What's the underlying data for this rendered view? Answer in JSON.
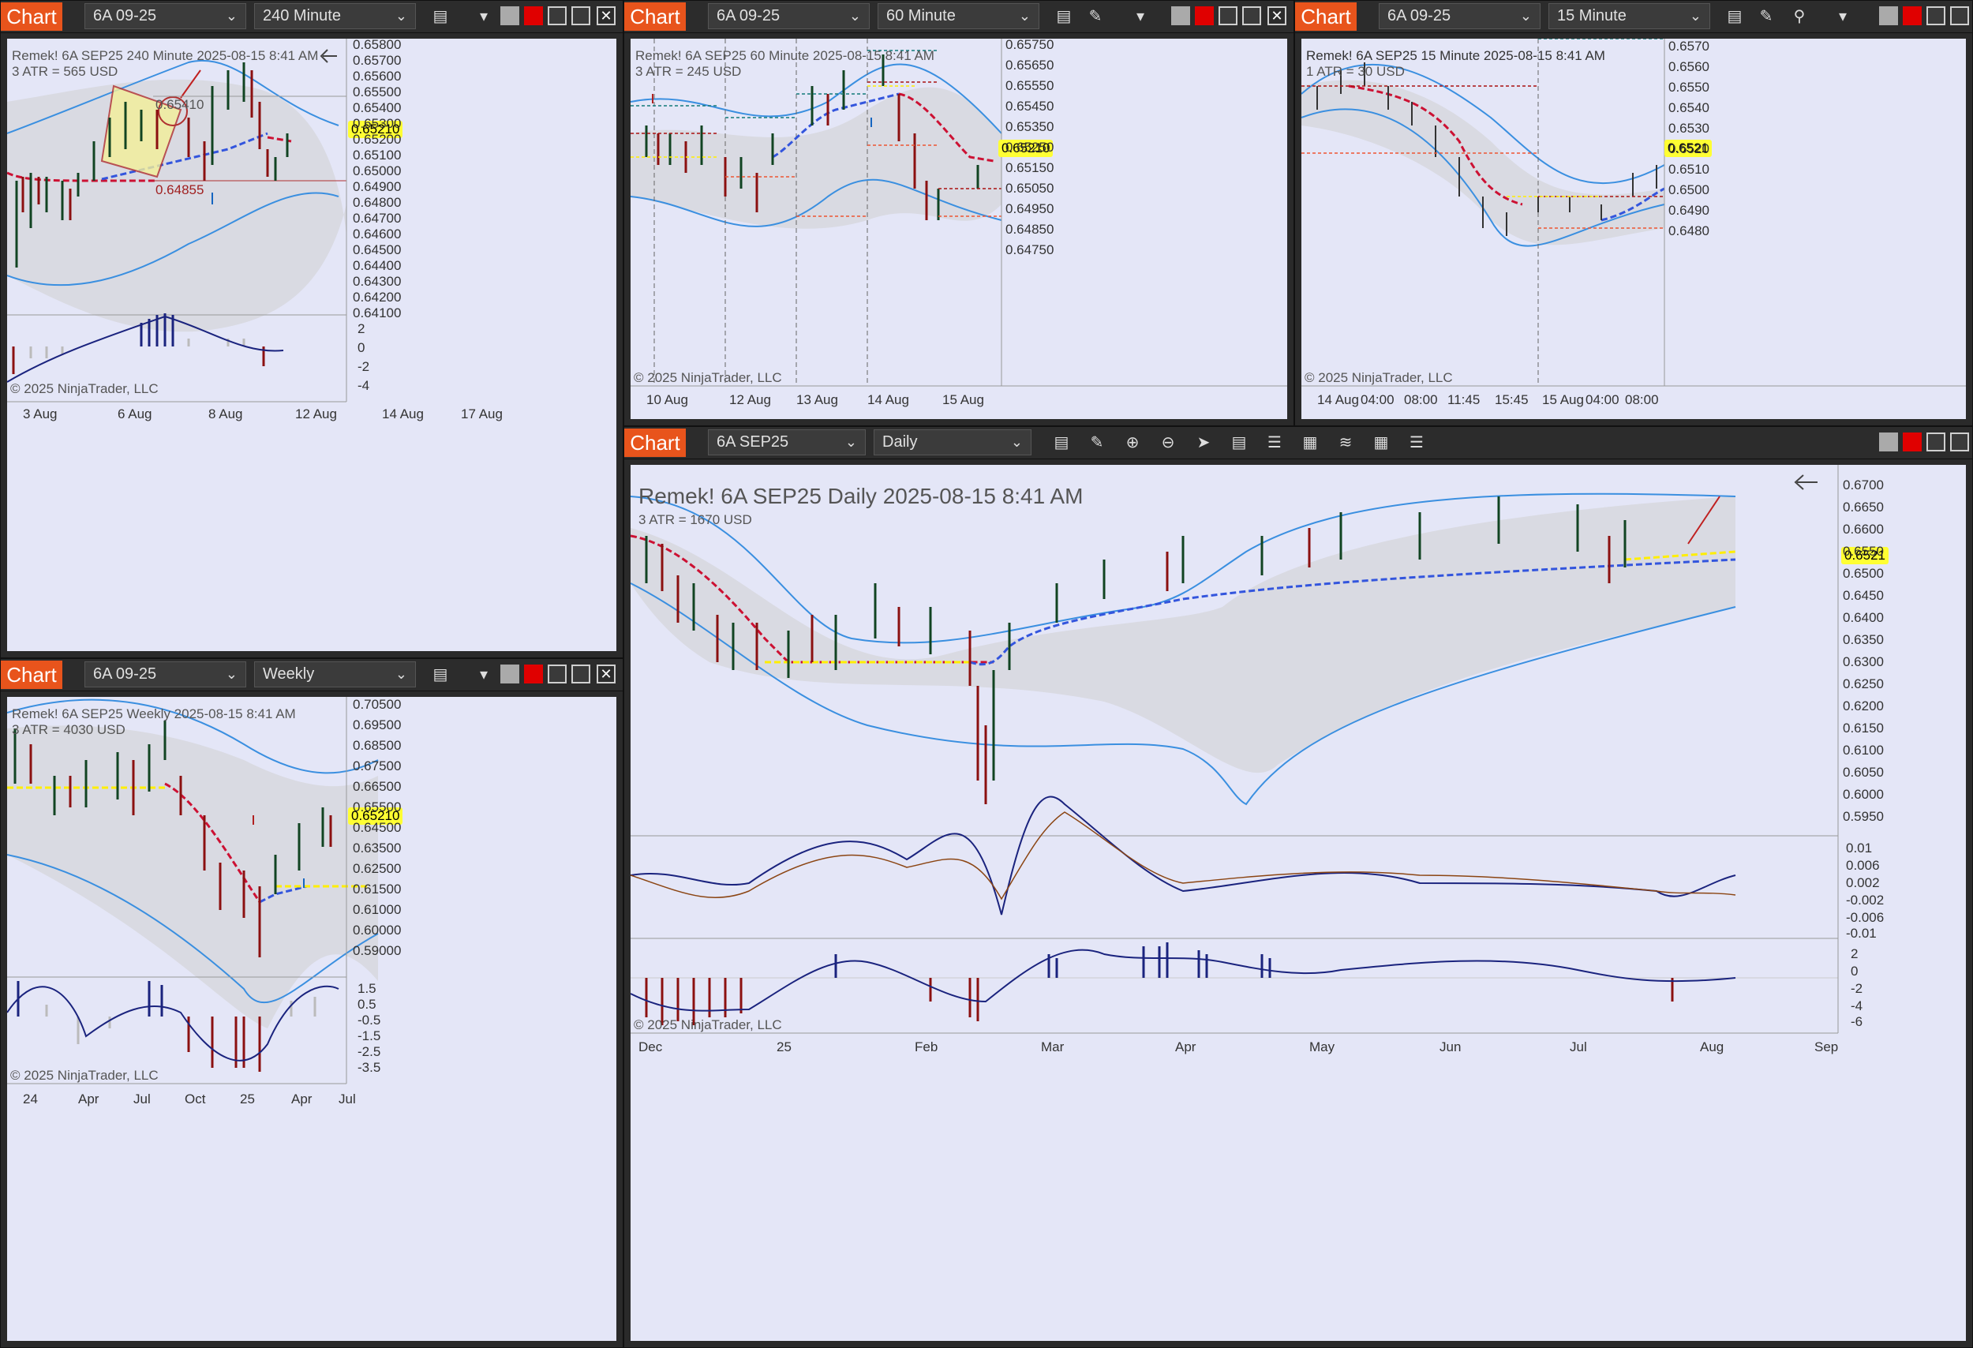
{
  "chart_label": "Chart",
  "copyright": "© 2025 NinjaTrader, LLC",
  "price_label": "0.65210",
  "windows": {
    "w240": {
      "instrument": "6A 09-25",
      "interval": "240 Minute",
      "title": "Remek!  6A SEP25  240 Minute  2025-08-15 8:41 AM",
      "atr": "3 ATR = 565 USD",
      "level_high": "0.65410",
      "level_low": "0.64855",
      "price_ticks": [
        "0.65800",
        "0.65700",
        "0.65600",
        "0.65500",
        "0.65400",
        "0.65300",
        "0.65200",
        "0.65100",
        "0.65000",
        "0.64900",
        "0.64800",
        "0.64700",
        "0.64600",
        "0.64500",
        "0.64400",
        "0.64300",
        "0.64200",
        "0.64100"
      ],
      "osc_ticks": [
        "2",
        "0",
        "-2",
        "-4"
      ],
      "date_ticks": [
        "3 Aug",
        "6 Aug",
        "8 Aug",
        "12 Aug",
        "14 Aug",
        "17 Aug"
      ]
    },
    "w60": {
      "instrument": "6A 09-25",
      "interval": "60 Minute",
      "title": "Remek!  6A SEP25  60 Minute  2025-08-15 8:41 AM",
      "atr": "3 ATR = 245 USD",
      "price_ticks": [
        "0.65750",
        "0.65650",
        "0.65550",
        "0.65450",
        "0.65350",
        "0.65250",
        "0.65150",
        "0.65050",
        "0.64950",
        "0.64850",
        "0.64750"
      ],
      "date_ticks": [
        "10 Aug",
        "12 Aug",
        "13 Aug",
        "14 Aug",
        "15 Aug"
      ]
    },
    "w15": {
      "instrument": "6A 09-25",
      "interval": "15 Minute",
      "title": "Remek!  6A SEP25  15 Minute  2025-08-15 8:41 AM",
      "atr": "1 ATR = 30 USD",
      "price_label": "0.6521",
      "price_ticks": [
        "0.6570",
        "0.6560",
        "0.6550",
        "0.6540",
        "0.6530",
        "0.6520",
        "0.6510",
        "0.6500",
        "0.6490",
        "0.6480"
      ],
      "date_ticks": [
        "14 Aug",
        "04:00",
        "08:00",
        "11:45",
        "15:45",
        "15 Aug",
        "04:00",
        "08:00"
      ]
    },
    "wweek": {
      "instrument": "6A 09-25",
      "interval": "Weekly",
      "title": "Remek!  6A SEP25  Weekly  2025-08-15 8:41 AM",
      "atr": "3 ATR = 4030 USD",
      "price_ticks": [
        "0.70500",
        "0.69500",
        "0.68500",
        "0.67500",
        "0.66500",
        "0.65500",
        "0.64500",
        "0.63500",
        "0.62500",
        "0.61500",
        "0.61000",
        "0.60000",
        "0.59000"
      ],
      "osc_ticks": [
        "1.5",
        "0.5",
        "-0.5",
        "-1.5",
        "-2.5",
        "-3.5"
      ],
      "date_ticks": [
        "24",
        "Apr",
        "Jul",
        "Oct",
        "25",
        "Apr",
        "Jul"
      ]
    },
    "wdaily": {
      "instrument": "6A SEP25",
      "interval": "Daily",
      "title": "Remek!  6A SEP25  Daily  2025-08-15 8:41 AM",
      "atr": "3 ATR = 1670 USD",
      "price_label": "0.6521",
      "price_ticks": [
        "0.6700",
        "0.6650",
        "0.6600",
        "0.6550",
        "0.6500",
        "0.6450",
        "0.6400",
        "0.6350",
        "0.6300",
        "0.6250",
        "0.6200",
        "0.6150",
        "0.6100",
        "0.6050",
        "0.6000",
        "0.5950"
      ],
      "macd_ticks": [
        "0.01",
        "0.006",
        "0.002",
        "-0.002",
        "-0.006",
        "-0.01"
      ],
      "osc_ticks": [
        "2",
        "0",
        "-2",
        "-4",
        "-6"
      ],
      "date_ticks": [
        "Dec",
        "25",
        "Feb",
        "Mar",
        "Apr",
        "May",
        "Jun",
        "Jul",
        "Aug",
        "Sep"
      ]
    }
  },
  "icons": {
    "bars": "bar-chart-icon",
    "draw": "pencil-icon",
    "zoom": "magnifier-icon",
    "arrow": "back-arrow-icon"
  }
}
